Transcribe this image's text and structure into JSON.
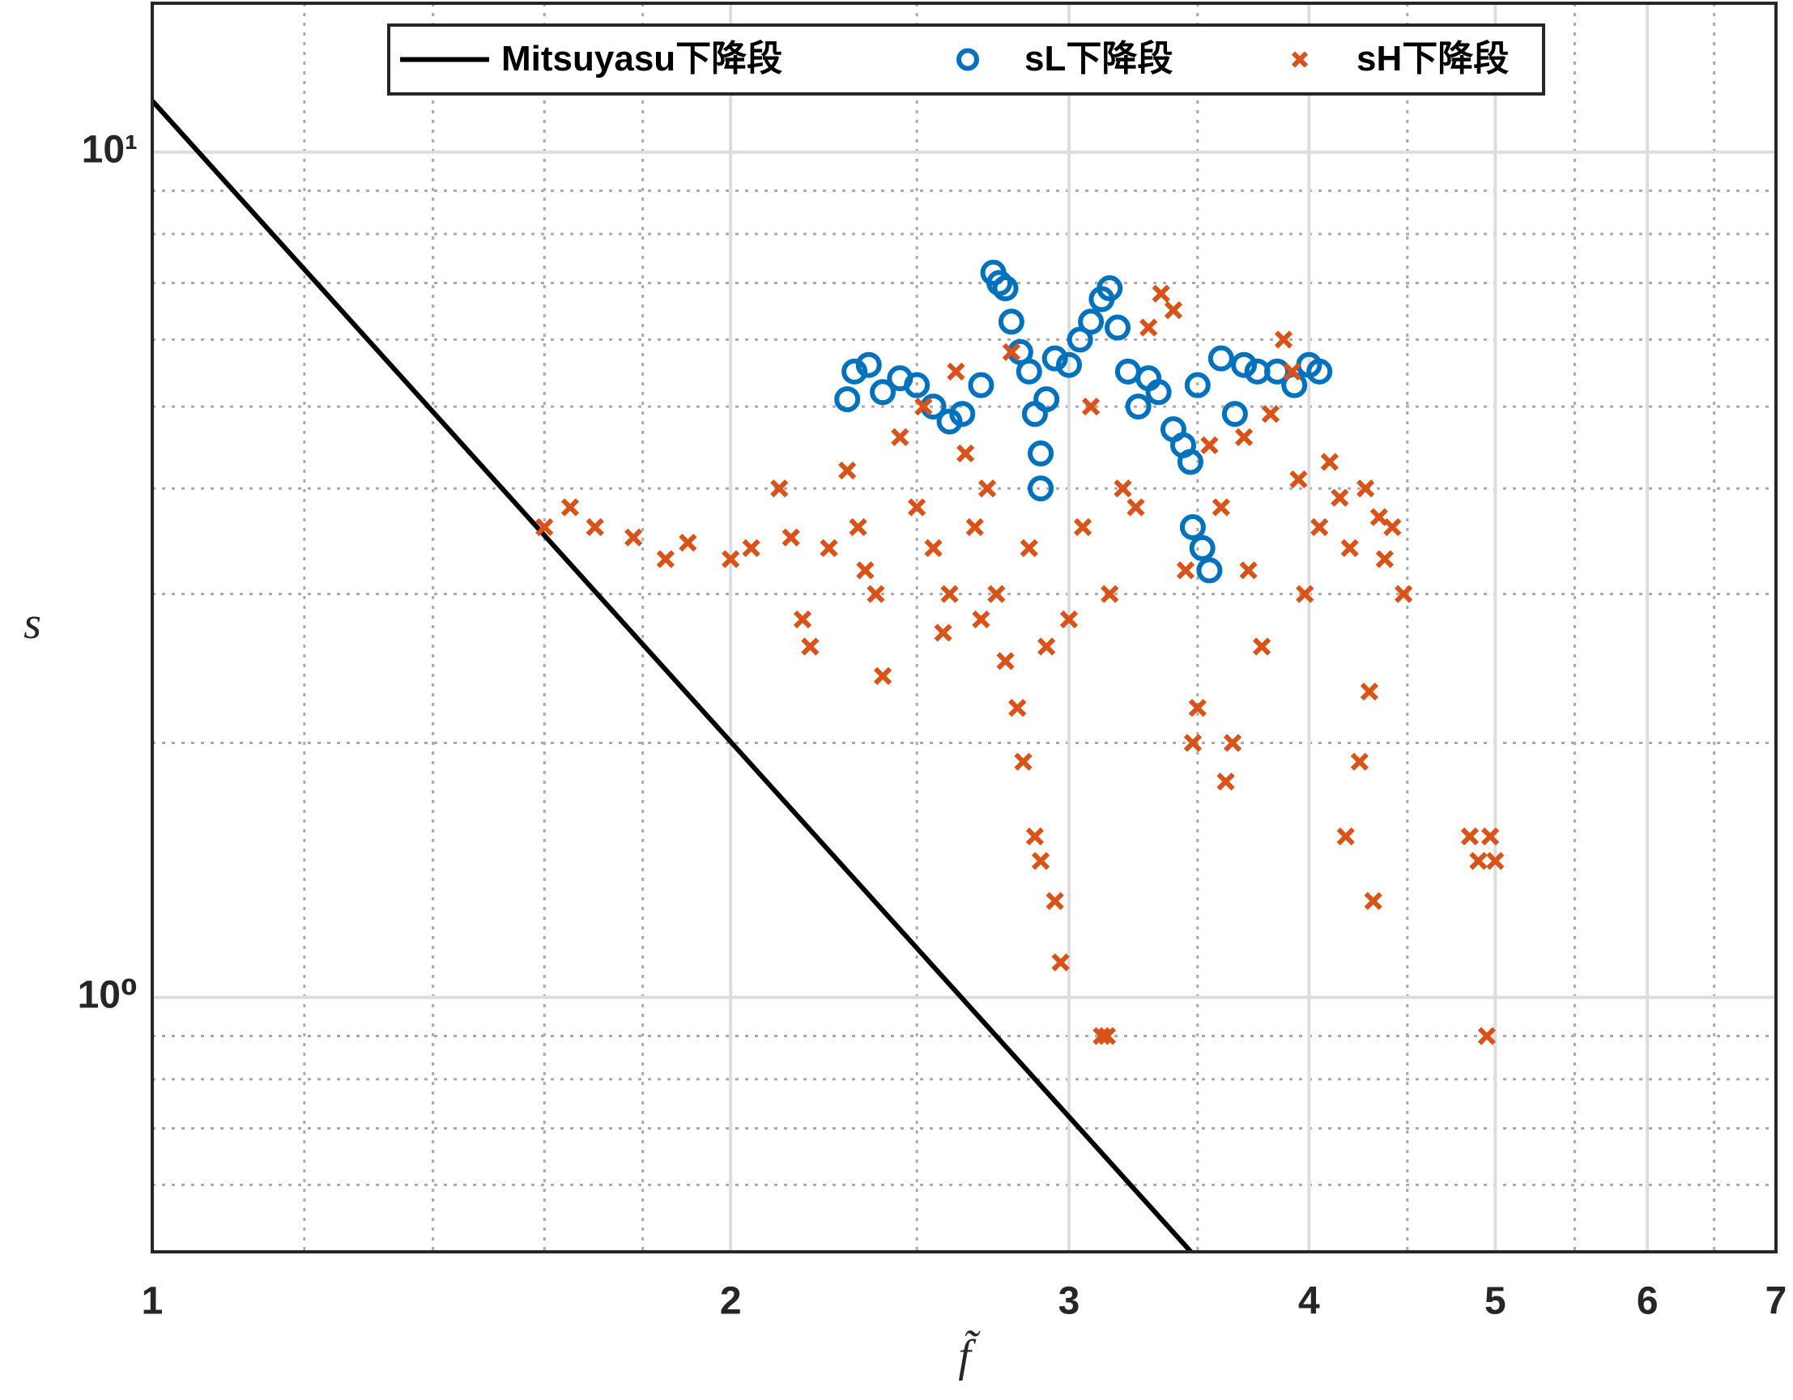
{
  "chart_data": {
    "type": "scatter",
    "x_label": "f̃",
    "y_label": "s",
    "log_x": true,
    "log_y": true,
    "grid": true,
    "legend": "top",
    "xlim": [
      1,
      7
    ],
    "xticks": [
      1,
      2,
      3,
      4,
      5,
      6,
      7
    ],
    "xminorticks": [
      1.2,
      1.4,
      1.6,
      1.8,
      2.5,
      3.5,
      4.5,
      5.5,
      6.5
    ],
    "ylim": [
      0.5,
      15
    ],
    "yticks": [
      {
        "value": 1,
        "label": "10⁰"
      },
      {
        "value": 10,
        "label": "10¹"
      }
    ],
    "yminorticks": [
      0.6,
      0.7,
      0.8,
      0.9,
      2,
      3,
      4,
      5,
      6,
      7,
      8,
      9
    ],
    "series": [
      {
        "name": "Mitsuyasu下降段",
        "type": "line",
        "color": "#000000",
        "x": [
          1,
          3.5
        ],
        "values": [
          11.5,
          0.49
        ]
      },
      {
        "name": "sL下降段",
        "type": "scatter",
        "marker": "circle",
        "color": "#0072bd",
        "x": [
          2.3,
          2.32,
          2.36,
          2.4,
          2.45,
          2.5,
          2.55,
          2.6,
          2.64,
          2.7,
          2.74,
          2.76,
          2.78,
          2.8,
          2.83,
          2.86,
          2.88,
          2.9,
          2.9,
          2.92,
          2.95,
          3.0,
          3.04,
          3.08,
          3.12,
          3.15,
          3.18,
          3.22,
          3.26,
          3.3,
          3.34,
          3.4,
          3.44,
          3.47,
          3.5,
          3.48,
          3.52,
          3.55,
          3.6,
          3.66,
          3.7,
          3.76,
          3.85,
          3.93,
          4.0,
          4.05
        ],
        "values": [
          5.1,
          5.5,
          5.6,
          5.2,
          5.4,
          5.3,
          5.0,
          4.8,
          4.9,
          5.3,
          7.2,
          7.0,
          6.9,
          6.3,
          5.8,
          5.5,
          4.9,
          4.4,
          4.0,
          5.1,
          5.7,
          5.6,
          6.0,
          6.3,
          6.7,
          6.9,
          6.2,
          5.5,
          5.0,
          5.4,
          5.2,
          4.7,
          4.5,
          4.3,
          5.3,
          3.6,
          3.4,
          3.2,
          5.7,
          4.9,
          5.6,
          5.5,
          5.5,
          5.3,
          5.6,
          5.5
        ]
      },
      {
        "name": "sH下降段",
        "type": "scatter",
        "marker": "x",
        "color": "#d95319",
        "x": [
          1.6,
          1.65,
          1.7,
          1.78,
          1.85,
          1.9,
          2.0,
          2.05,
          2.12,
          2.15,
          2.18,
          2.2,
          2.25,
          2.3,
          2.33,
          2.35,
          2.38,
          2.4,
          2.45,
          2.5,
          2.52,
          2.55,
          2.58,
          2.6,
          2.62,
          2.65,
          2.68,
          2.7,
          2.72,
          2.75,
          2.78,
          2.8,
          2.82,
          2.84,
          2.86,
          2.88,
          2.9,
          2.92,
          2.95,
          2.97,
          3.0,
          3.05,
          3.08,
          3.12,
          3.14,
          3.15,
          3.2,
          3.25,
          3.3,
          3.35,
          3.4,
          3.45,
          3.48,
          3.5,
          3.55,
          3.6,
          3.62,
          3.65,
          3.7,
          3.72,
          3.78,
          3.82,
          3.88,
          3.92,
          3.95,
          3.98,
          4.05,
          4.1,
          4.15,
          4.18,
          4.2,
          4.25,
          4.28,
          4.3,
          4.32,
          4.35,
          4.38,
          4.42,
          4.48,
          4.85,
          4.9,
          4.95,
          4.97,
          5.0
        ],
        "values": [
          3.6,
          3.8,
          3.6,
          3.5,
          3.3,
          3.45,
          3.3,
          3.4,
          4.0,
          3.5,
          2.8,
          2.6,
          3.4,
          4.2,
          3.6,
          3.2,
          3.0,
          2.4,
          4.6,
          3.8,
          5.0,
          3.4,
          2.7,
          3.0,
          5.5,
          4.4,
          3.6,
          2.8,
          4.0,
          3.0,
          2.5,
          5.8,
          2.2,
          1.9,
          3.4,
          1.55,
          1.45,
          2.6,
          1.3,
          1.1,
          2.8,
          3.6,
          5.0,
          0.9,
          0.9,
          3.0,
          4.0,
          3.8,
          6.2,
          6.8,
          6.5,
          3.2,
          2.0,
          2.2,
          4.5,
          3.8,
          1.8,
          2.0,
          4.6,
          3.2,
          2.6,
          4.9,
          6.0,
          5.5,
          4.1,
          3.0,
          3.6,
          4.3,
          3.9,
          1.55,
          3.4,
          1.9,
          4.0,
          2.3,
          1.3,
          3.7,
          3.3,
          3.6,
          3.0,
          1.55,
          1.45,
          0.9,
          1.55,
          1.45
        ]
      }
    ]
  }
}
